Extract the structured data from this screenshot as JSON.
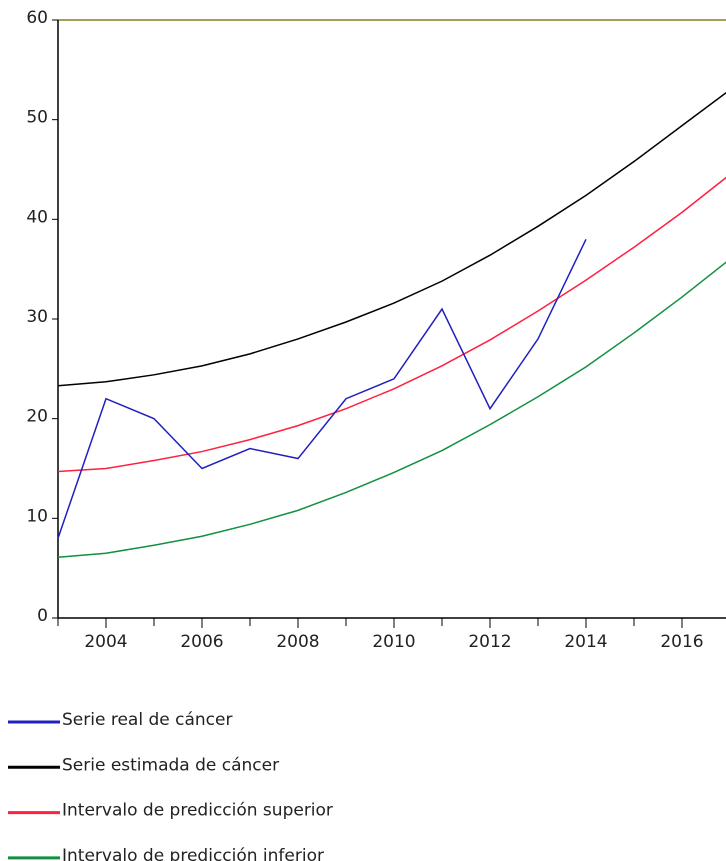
{
  "chart_data": {
    "type": "line",
    "x": [
      2003,
      2004,
      2005,
      2006,
      2007,
      2008,
      2009,
      2010,
      2011,
      2012,
      2013,
      2014,
      2015,
      2016,
      2017
    ],
    "series": [
      {
        "name": "Serie real de cáncer",
        "color": "#2020c0",
        "values": [
          8,
          22,
          20,
          15,
          17,
          16,
          22,
          24,
          31,
          21,
          28,
          38,
          null,
          null,
          null
        ]
      },
      {
        "name": "Serie estimada de cáncer",
        "color": "#000000",
        "values": [
          23.3,
          23.7,
          24.4,
          25.3,
          26.5,
          28.0,
          29.7,
          31.6,
          33.8,
          36.4,
          39.3,
          42.4,
          45.8,
          49.4,
          53.0
        ]
      },
      {
        "name": "Intervalo de predicción superior",
        "color": "#ff2040",
        "values": [
          14.7,
          15.0,
          15.8,
          16.7,
          17.9,
          19.3,
          21.0,
          23.0,
          25.3,
          27.9,
          30.8,
          33.9,
          37.2,
          40.7,
          44.5
        ]
      },
      {
        "name": "Intervalo de predicción inferior",
        "color": "#109040",
        "values": [
          6.1,
          6.5,
          7.3,
          8.2,
          9.4,
          10.8,
          12.6,
          14.6,
          16.8,
          19.4,
          22.2,
          25.2,
          28.6,
          32.2,
          36.0
        ]
      }
    ],
    "xlim": [
      2003,
      2017
    ],
    "xticks": [
      2004,
      2006,
      2008,
      2010,
      2012,
      2014,
      2016
    ],
    "ylim": [
      0,
      60
    ],
    "yticks": [
      0,
      10,
      20,
      30,
      40,
      50,
      60
    ]
  }
}
